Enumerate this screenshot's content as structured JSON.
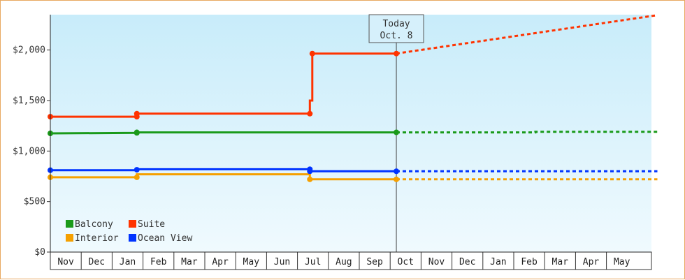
{
  "chart_data": {
    "type": "line",
    "title": "",
    "xlabel": "",
    "ylabel": "",
    "y_ticks": [
      "$0",
      "$500",
      "$1,000",
      "$1,500",
      "$2,000"
    ],
    "ylim": [
      0,
      2350
    ],
    "months": [
      "Nov",
      "Dec",
      "Jan",
      "Feb",
      "Mar",
      "Apr",
      "May",
      "Jun",
      "Jul",
      "Aug",
      "Sep",
      "Oct",
      "Nov",
      "Dec",
      "Jan",
      "Feb",
      "Mar",
      "Apr",
      "May"
    ],
    "today": {
      "line1": "Today",
      "line2": "Oct. 8",
      "x": 11.2
    },
    "grid": false,
    "legend_position": "bottom-left",
    "series": [
      {
        "name": "Balcony",
        "color": "#1a9a1a",
        "values": [
          [
            0,
            1175
          ],
          [
            2.8,
            1180
          ],
          [
            2.8,
            1185
          ],
          [
            11.2,
            1185
          ]
        ],
        "markers": [
          [
            0,
            1175
          ],
          [
            2.8,
            1180
          ],
          [
            2.8,
            1185
          ],
          [
            11.2,
            1185
          ]
        ],
        "projection": [
          [
            11.2,
            1185
          ],
          [
            15.7,
            1185
          ],
          [
            15.7,
            1190
          ],
          [
            19.65,
            1190
          ]
        ]
      },
      {
        "name": "Suite",
        "color": "#ff3300",
        "values": [
          [
            0,
            1340
          ],
          [
            2.8,
            1340
          ],
          [
            2.8,
            1370
          ],
          [
            8.4,
            1370
          ],
          [
            8.4,
            1500
          ],
          [
            8.48,
            1500
          ],
          [
            8.48,
            1965
          ],
          [
            11.2,
            1965
          ]
        ],
        "markers": [
          [
            0,
            1340
          ],
          [
            2.8,
            1340
          ],
          [
            2.8,
            1370
          ],
          [
            8.4,
            1370
          ],
          [
            8.48,
            1965
          ],
          [
            11.2,
            1965
          ]
        ],
        "projection": [
          [
            11.2,
            1965
          ],
          [
            19.65,
            2345
          ]
        ]
      },
      {
        "name": "Interior",
        "color": "#f5a000",
        "values": [
          [
            0,
            740
          ],
          [
            2.8,
            740
          ],
          [
            2.8,
            770
          ],
          [
            8.4,
            770
          ],
          [
            8.4,
            720
          ],
          [
            11.2,
            720
          ]
        ],
        "markers": [
          [
            0,
            740
          ],
          [
            2.8,
            740
          ],
          [
            8.4,
            720
          ],
          [
            11.2,
            720
          ]
        ],
        "projection": [
          [
            11.2,
            720
          ],
          [
            19.65,
            720
          ]
        ]
      },
      {
        "name": "Ocean View",
        "color": "#0033ff",
        "values": [
          [
            0,
            810
          ],
          [
            2.8,
            810
          ],
          [
            2.8,
            820
          ],
          [
            8.4,
            820
          ],
          [
            8.4,
            800
          ],
          [
            11.2,
            800
          ]
        ],
        "markers": [
          [
            0,
            810
          ],
          [
            2.8,
            815
          ],
          [
            8.4,
            820
          ],
          [
            8.4,
            800
          ],
          [
            11.2,
            800
          ]
        ],
        "projection": [
          [
            11.2,
            800
          ],
          [
            19.65,
            800
          ]
        ]
      }
    ]
  }
}
